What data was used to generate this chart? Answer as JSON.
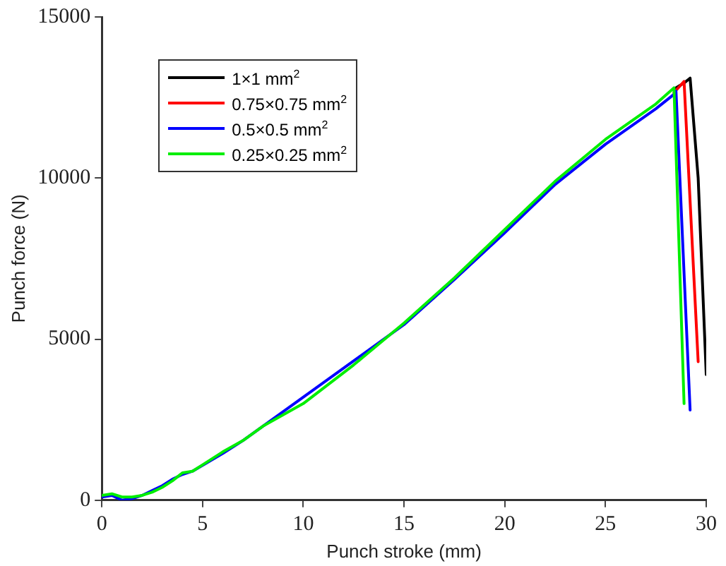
{
  "chart_data": {
    "type": "line",
    "xlabel": "Punch stroke (mm)",
    "ylabel": "Punch force (N)",
    "xlim": [
      0,
      30
    ],
    "xticks": [
      0,
      5,
      10,
      15,
      20,
      25,
      30
    ],
    "ylim": [
      0,
      15000
    ],
    "yticks": [
      0,
      5000,
      10000,
      15000
    ],
    "grid": false,
    "legend": "top left",
    "marker": "none",
    "line_style": "solid",
    "x": [
      0,
      0.5,
      1,
      1.5,
      2,
      2.5,
      3,
      3.5,
      4,
      4.5,
      5,
      6,
      7,
      8,
      10,
      12.5,
      15,
      17.5,
      20,
      22.5,
      25,
      27.5,
      28.4,
      28.5,
      28.9,
      29.2,
      29.6,
      30
    ],
    "series": [
      {
        "name": "1×1 mm$^{2}$",
        "color": "#000000",
        "values": [
          null,
          null,
          null,
          null,
          null,
          null,
          null,
          null,
          null,
          null,
          null,
          null,
          null,
          null,
          null,
          null,
          null,
          null,
          null,
          null,
          null,
          null,
          null,
          12800,
          12950,
          13100,
          10000,
          3900
        ]
      },
      {
        "name": "0.75×0.75 mm$^{2}$",
        "color": "#ff0000",
        "values": [
          null,
          null,
          null,
          null,
          null,
          null,
          null,
          null,
          null,
          null,
          null,
          null,
          null,
          null,
          null,
          null,
          null,
          null,
          null,
          null,
          null,
          null,
          12650,
          null,
          13000,
          null,
          4300,
          null
        ]
      },
      {
        "name": "0.5×0.5 mm$^{2}$",
        "color": "#0000ff",
        "values": [
          100,
          150,
          0,
          50,
          150,
          300,
          450,
          650,
          800,
          900,
          null,
          1450,
          1850,
          null,
          null,
          null,
          5450,
          6850,
          8300,
          9800,
          11050,
          12150,
          12600,
          12700,
          null,
          2800,
          null,
          null
        ]
      },
      {
        "name": "0.25×0.25 mm$^{2}$",
        "color": "#00ee00",
        "values": [
          150,
          200,
          100,
          100,
          150,
          250,
          400,
          600,
          850,
          900,
          1100,
          1500,
          1850,
          2300,
          3000,
          4200,
          5500,
          6900,
          8400,
          9900,
          11200,
          12300,
          12800,
          null,
          3000,
          null,
          null,
          null
        ]
      }
    ]
  }
}
